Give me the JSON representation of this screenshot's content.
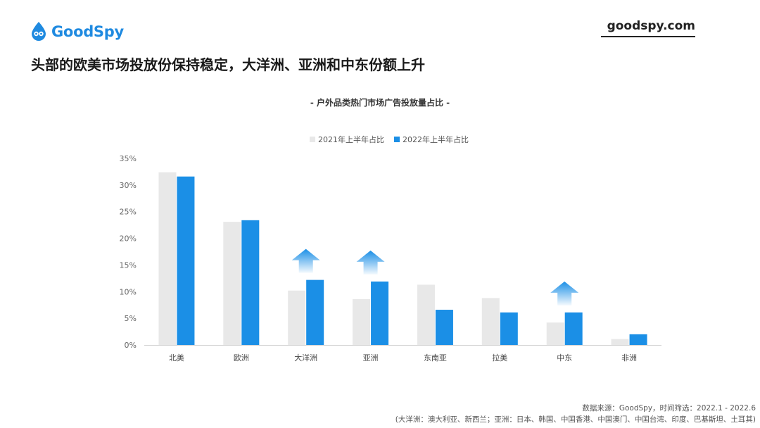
{
  "brand": {
    "logo_text": "GoodSpy",
    "site": "goodspy.com",
    "color": "#1f8ae0"
  },
  "headline": "头部的欧美市场投放份保持稳定，大洋洲、亚洲和中东份额上升",
  "footer": {
    "source": "数据来源：GoodSpy，时间筛选：2022.1 - 2022.6",
    "note": "(大洋洲：澳大利亚、新西兰；亚洲：日本、韩国、中国香港、中国澳门、中国台湾、印度、巴基斯坦、土耳其)"
  },
  "chart_data": {
    "type": "bar",
    "title": "- 户外品类热门市场广告投放量占比 -",
    "categories": [
      "北美",
      "欧洲",
      "大洋洲",
      "亚洲",
      "东南亚",
      "拉美",
      "中东",
      "非洲"
    ],
    "series": [
      {
        "name": "2021年上半年占比",
        "color": "#e8e8e8",
        "values": [
          32.4,
          23.1,
          10.2,
          8.6,
          11.3,
          8.8,
          4.2,
          1.1
        ]
      },
      {
        "name": "2022年上半年占比",
        "color": "#1b8fe6",
        "values": [
          31.6,
          23.4,
          12.2,
          11.9,
          6.6,
          6.1,
          6.1,
          2.0
        ]
      }
    ],
    "y_ticks": [
      "0%",
      "5%",
      "10%",
      "15%",
      "20%",
      "25%",
      "30%",
      "35%"
    ],
    "ylim": [
      0,
      35
    ],
    "legend_position": "top-center",
    "grid": false,
    "up_arrows": [
      "大洋洲",
      "亚洲",
      "中东"
    ]
  }
}
